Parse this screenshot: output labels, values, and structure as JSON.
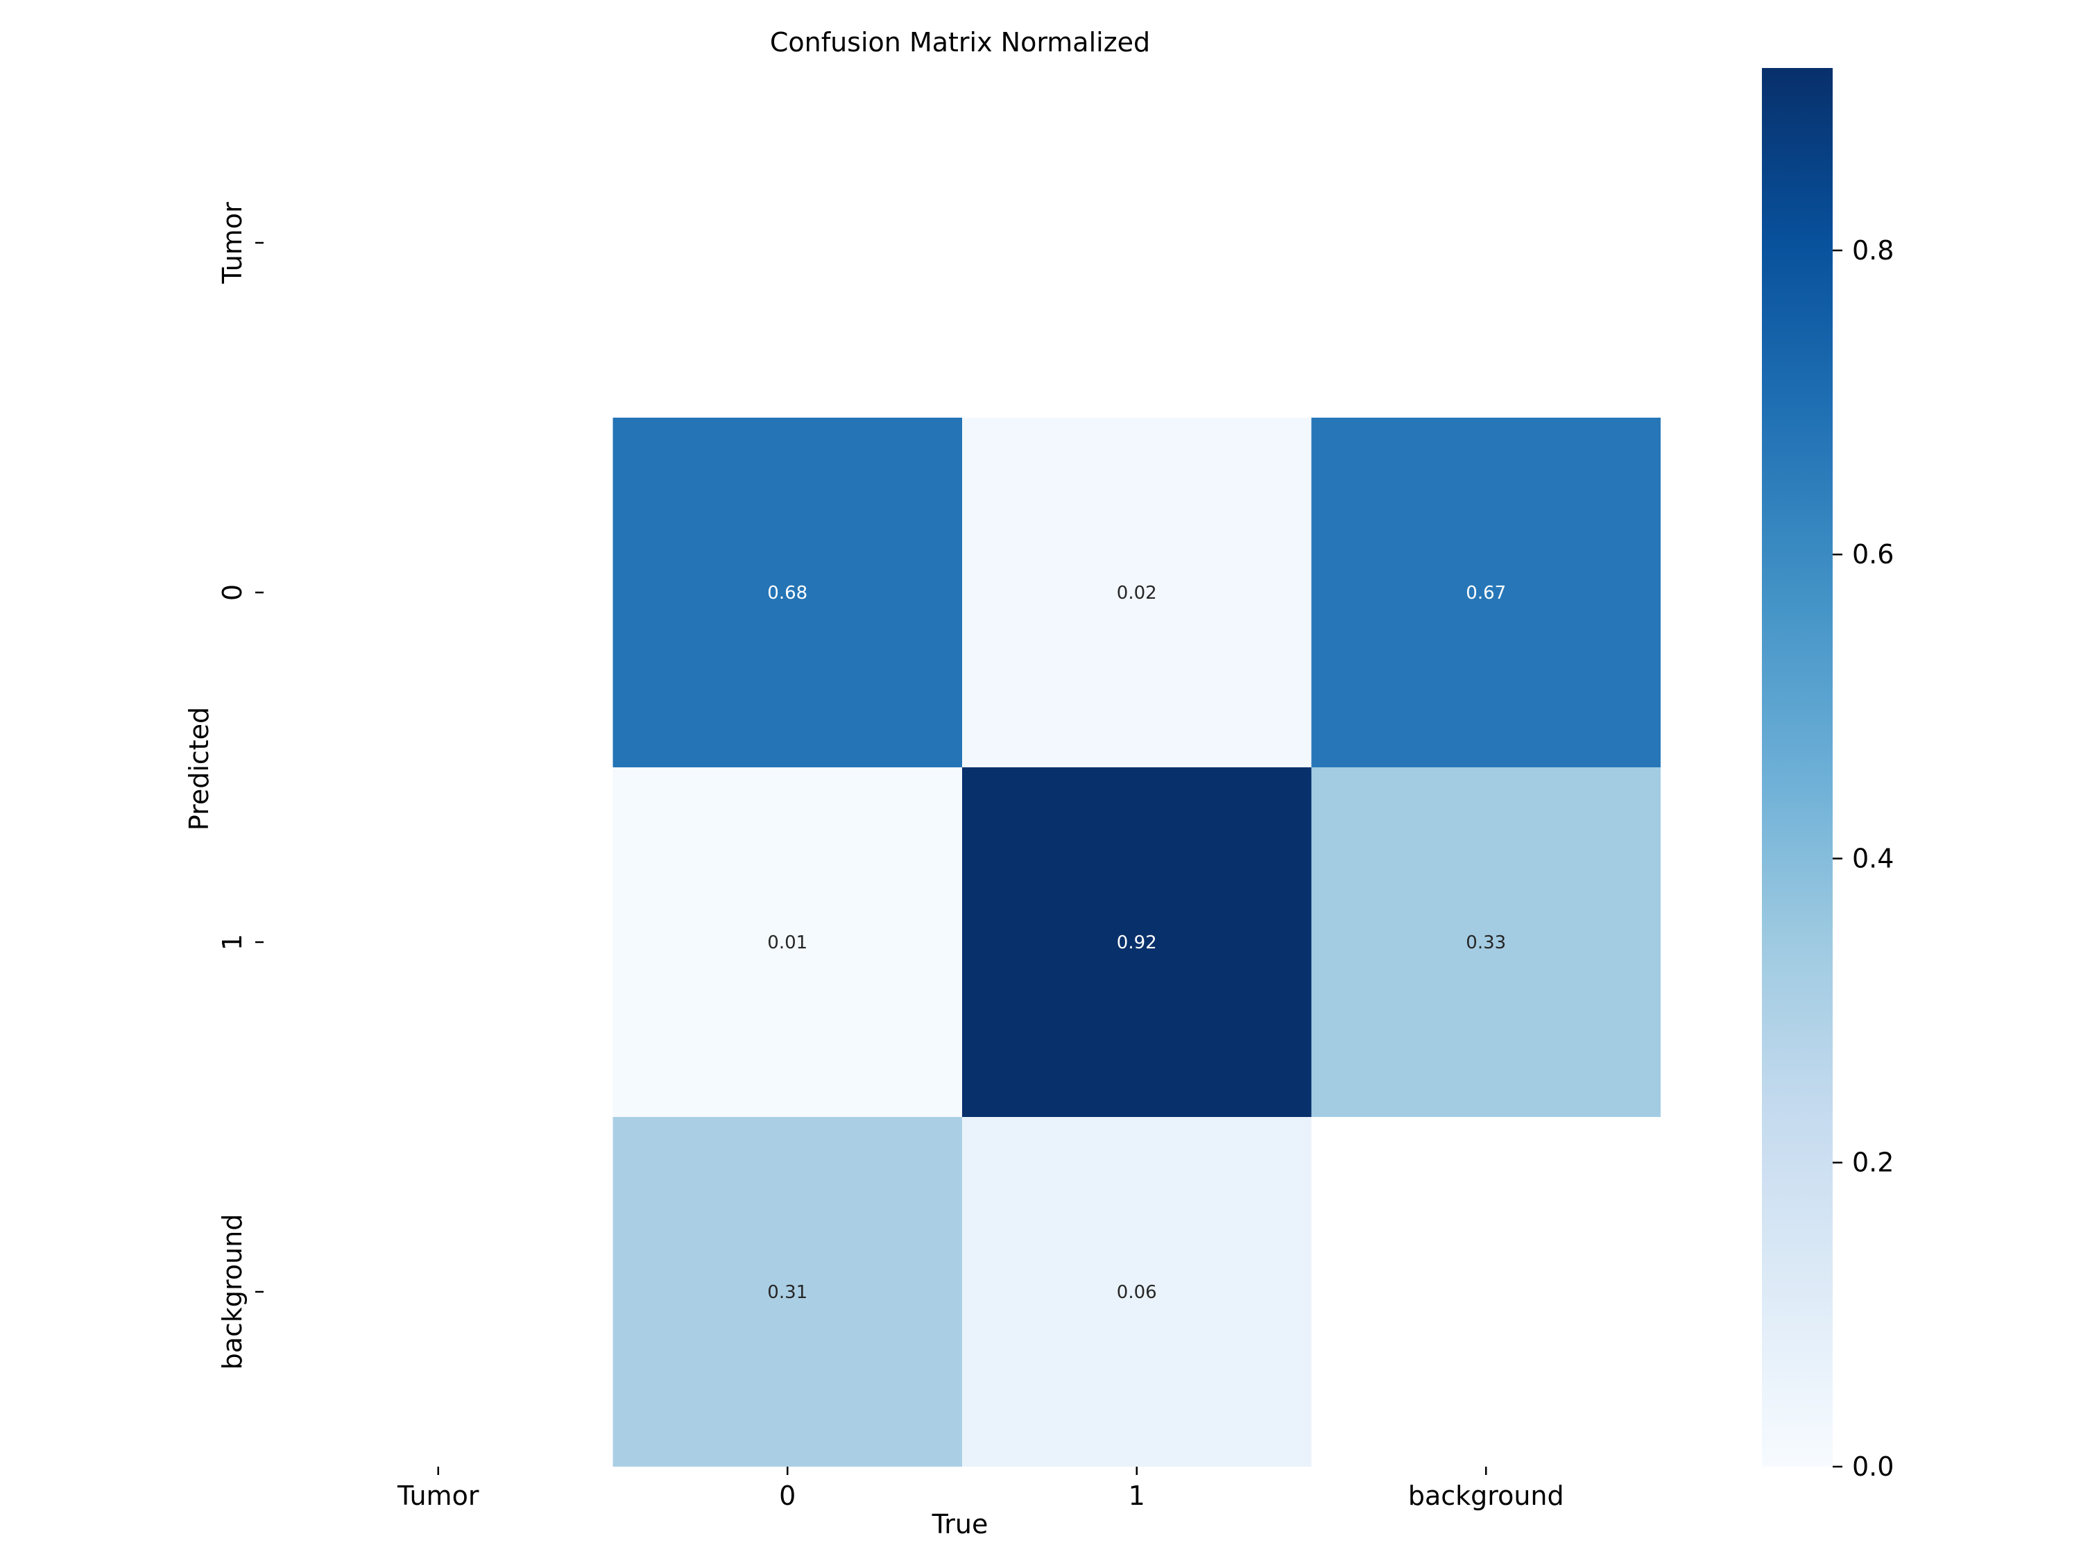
{
  "chart_data": {
    "type": "heatmap",
    "title": "Confusion Matrix Normalized",
    "xlabel": "True",
    "ylabel": "Predicted",
    "x_categories": [
      "Tumor",
      "0",
      "1",
      "background"
    ],
    "y_categories": [
      "Tumor",
      "0",
      "1",
      "background"
    ],
    "values": [
      [
        null,
        null,
        null,
        null
      ],
      [
        null,
        0.68,
        0.02,
        0.67
      ],
      [
        null,
        0.01,
        0.92,
        0.33
      ],
      [
        null,
        0.31,
        0.06,
        null
      ]
    ],
    "cell_labels": [
      [
        "",
        "",
        "",
        ""
      ],
      [
        "",
        "0.68",
        "0.02",
        "0.67"
      ],
      [
        "",
        "0.01",
        "0.92",
        "0.33"
      ],
      [
        "",
        "0.31",
        "0.06",
        ""
      ]
    ],
    "colormap": "Blues",
    "vmin": 0.0,
    "vmax": 0.92,
    "colorbar": {
      "ticks": [
        0.0,
        0.2,
        0.4,
        0.6,
        0.8
      ],
      "tick_labels": [
        "0.0",
        "0.2",
        "0.4",
        "0.6",
        "0.8"
      ]
    },
    "grid": false
  }
}
